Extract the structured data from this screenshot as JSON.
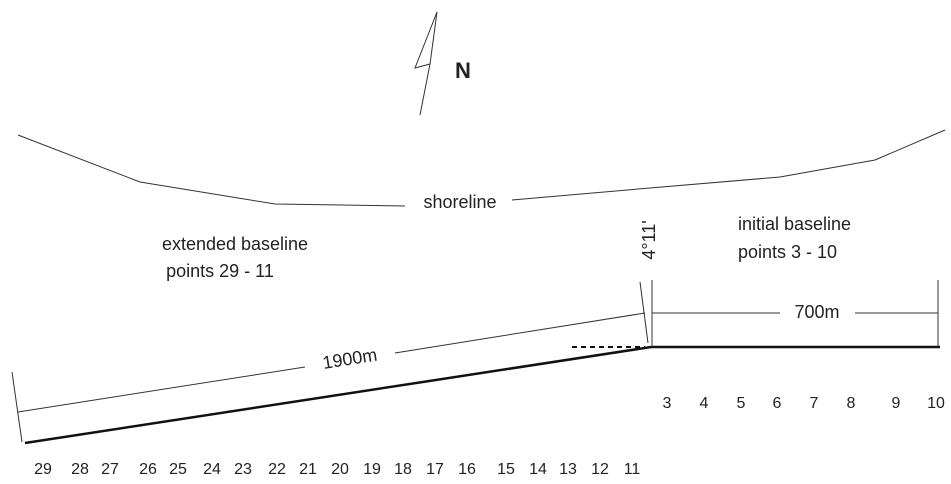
{
  "north_label": "N",
  "shoreline_label": "shoreline",
  "extended": {
    "title": "extended baseline",
    "points": "points 29 - 11",
    "length": "1900m",
    "point_numbers": [
      29,
      28,
      27,
      26,
      25,
      24,
      23,
      22,
      21,
      20,
      19,
      18,
      17,
      16,
      15,
      14,
      13,
      12,
      11
    ]
  },
  "initial": {
    "title": "initial baseline",
    "points": "points 3 - 10",
    "length": "700m",
    "point_numbers": [
      3,
      4,
      5,
      6,
      7,
      8,
      9,
      10
    ]
  },
  "angle_label": "4°11'"
}
